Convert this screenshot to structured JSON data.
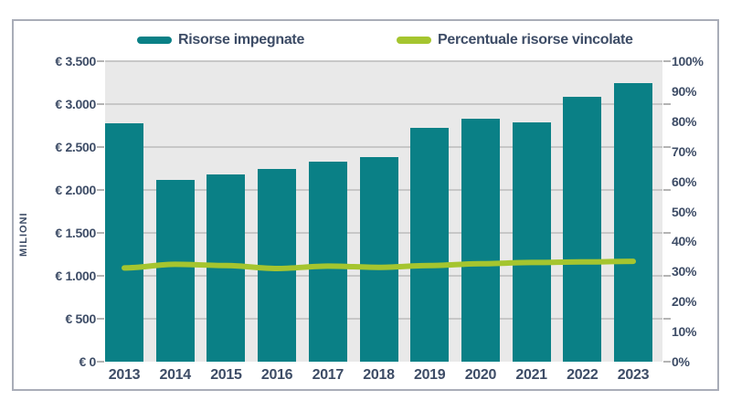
{
  "legend": [
    {
      "label": "Risorse impegnate",
      "color": "#0A8086",
      "marker": "pill"
    },
    {
      "label": "Percentuale risorse vincolate",
      "color": "#A5C52F",
      "marker": "pill"
    }
  ],
  "chart_data": {
    "type": "bar",
    "subtype": "combo-bar-line",
    "categories": [
      "2013",
      "2014",
      "2015",
      "2016",
      "2017",
      "2018",
      "2019",
      "2020",
      "2021",
      "2022",
      "2023"
    ],
    "series": [
      {
        "name": "Risorse impegnate",
        "type": "bar",
        "axis": "left",
        "unit": "€ milioni",
        "color": "#0A8086",
        "values": [
          2780,
          2120,
          2180,
          2250,
          2330,
          2380,
          2720,
          2830,
          2790,
          3090,
          3240
        ]
      },
      {
        "name": "Percentuale risorse vincolate",
        "type": "line",
        "axis": "right",
        "unit": "%",
        "color": "#A5C52F",
        "values": [
          31.2,
          32.4,
          32.0,
          31.0,
          31.8,
          31.4,
          32.0,
          32.6,
          33.0,
          33.2,
          33.4
        ]
      }
    ],
    "left_axis": {
      "label": "MILIONI",
      "min": 0,
      "max": 3500,
      "step": 500,
      "tick_labels": [
        "€ 3.500",
        "€ 3.000",
        "€ 2.500",
        "€ 2.000",
        "€ 1.500",
        "€ 1.000",
        "€ 500",
        "€ 0"
      ]
    },
    "right_axis": {
      "min": 0,
      "max": 100,
      "step": 10,
      "tick_labels": [
        "100%",
        "90%",
        "80%",
        "70%",
        "60%",
        "50%",
        "40%",
        "30%",
        "20%",
        "10%",
        "0%"
      ]
    },
    "grid": "horizontal",
    "legend_position": "top"
  },
  "colors": {
    "bar": "#0A8086",
    "line": "#A5C52F",
    "text": "#3D4C66",
    "plot_background": "#E9E9E9",
    "gridline": "#C7C7C7",
    "panel_border": "#A9ADB8",
    "tick": "#B4B4B4"
  }
}
